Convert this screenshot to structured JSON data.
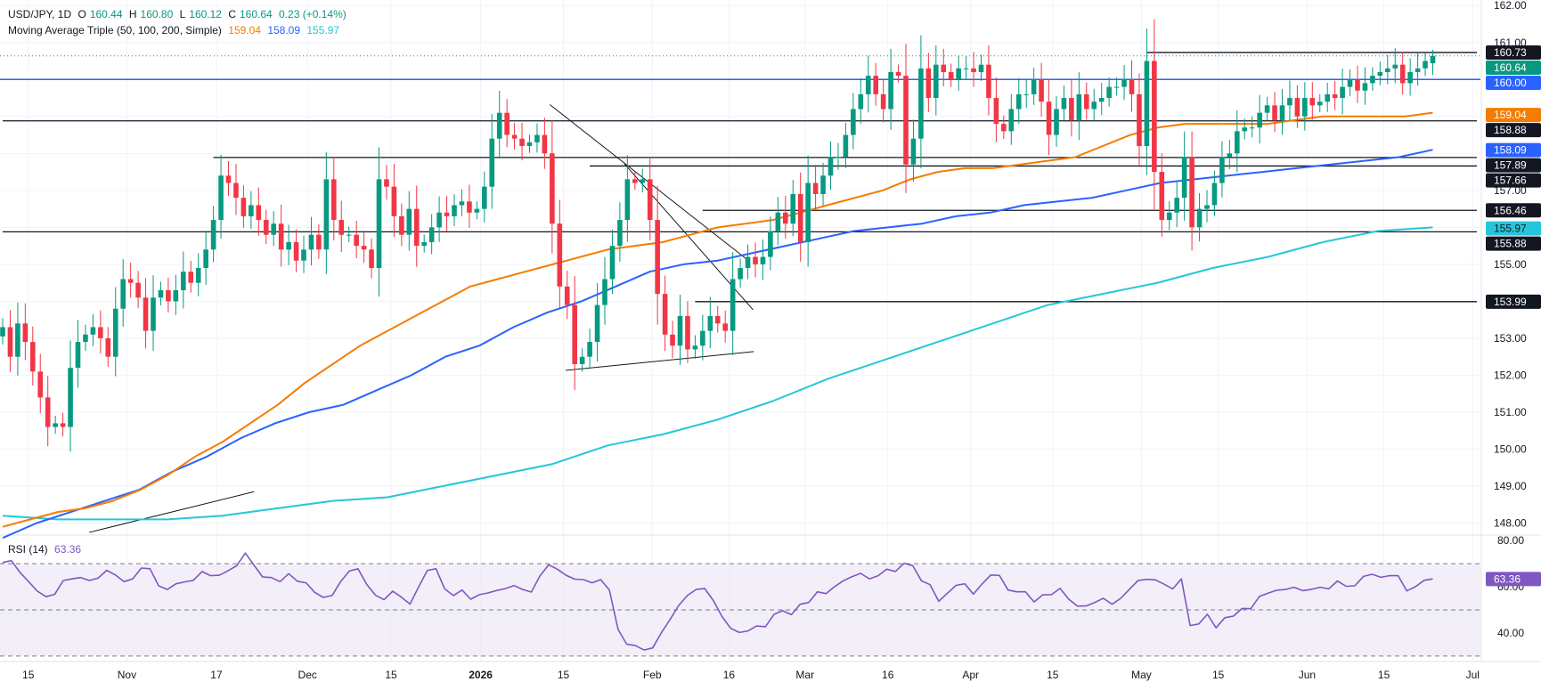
{
  "legend": {
    "symbol": "USD/JPY, 1D",
    "o_label": "O",
    "o_value": "160.44",
    "h_label": "H",
    "h_value": "160.80",
    "l_label": "L",
    "l_value": "160.12",
    "c_label": "C",
    "c_value": "160.64",
    "change": "0.23 (+0.14%)",
    "ma_title": "Moving Average Triple (50, 100, 200, Simple)",
    "ma50_value": "159.04",
    "ma100_value": "158.09",
    "ma200_value": "155.97",
    "rsi_title": "RSI (14)",
    "rsi_value": "63.36"
  },
  "colors": {
    "up": "#089981",
    "down": "#f23645",
    "ma50": "#f57c00",
    "ma100": "#2962ff",
    "ma200": "#26c6da",
    "support": "#131722",
    "level_160": "#2962ff",
    "rsi": "#7e57c2",
    "rsi_band": "#ede7f6",
    "grid": "#f0f3fa",
    "axis_text": "#131722"
  },
  "chart_data": {
    "type": "candlestick",
    "price_axis": {
      "ylim": [
        147.7,
        162.15
      ],
      "ticks": [
        148,
        149,
        150,
        151,
        152,
        153,
        154,
        155,
        156,
        157,
        158,
        159,
        160,
        161,
        162
      ],
      "tick_labels": [
        "148.00",
        "149.00",
        "150.00",
        "151.00",
        "152.00",
        "153.00",
        "154.00",
        "155.00",
        "156.00",
        "157.00",
        "158.00",
        "159.00",
        "160.00",
        "161.00",
        "162.00"
      ]
    },
    "time_axis": {
      "labels": [
        {
          "text": "15",
          "bar": 3.4
        },
        {
          "text": "Nov",
          "bar": 16.5
        },
        {
          "text": "17",
          "bar": 28.4
        },
        {
          "text": "Dec",
          "bar": 40.5
        },
        {
          "text": "15",
          "bar": 51.6
        },
        {
          "text": "2026",
          "bar": 63.5
        },
        {
          "text": "15",
          "bar": 74.5
        },
        {
          "text": "Feb",
          "bar": 86.3
        },
        {
          "text": "16",
          "bar": 96.5
        },
        {
          "text": "Mar",
          "bar": 106.6
        },
        {
          "text": "16",
          "bar": 117.6
        },
        {
          "text": "Apr",
          "bar": 128.6
        },
        {
          "text": "15",
          "bar": 139.5
        },
        {
          "text": "May",
          "bar": 151.3
        },
        {
          "text": "15",
          "bar": 161.5
        },
        {
          "text": "Jun",
          "bar": 173.3
        },
        {
          "text": "15",
          "bar": 183.5
        },
        {
          "text": "Jul",
          "bar": 195.3
        }
      ]
    },
    "close_series": [
      153.3,
      152.5,
      153.4,
      152.9,
      152.1,
      151.4,
      150.6,
      150.7,
      150.6,
      152.2,
      152.9,
      153.1,
      153.3,
      153.0,
      152.5,
      153.8,
      154.6,
      154.5,
      154.1,
      153.2,
      154.1,
      154.3,
      154.0,
      154.3,
      154.8,
      154.5,
      154.9,
      155.4,
      156.2,
      157.4,
      157.2,
      156.8,
      156.3,
      156.6,
      156.2,
      155.8,
      156.1,
      155.4,
      155.6,
      155.1,
      155.4,
      155.8,
      155.4,
      157.3,
      156.2,
      155.8,
      155.8,
      155.5,
      155.4,
      154.9,
      157.3,
      157.1,
      156.3,
      155.8,
      156.5,
      155.5,
      155.6,
      156.0,
      156.4,
      156.3,
      156.6,
      156.7,
      156.4,
      156.5,
      157.1,
      158.4,
      159.1,
      158.5,
      158.4,
      158.2,
      158.3,
      158.5,
      158.0,
      156.1,
      154.4,
      153.9,
      152.3,
      152.5,
      152.9,
      153.9,
      154.6,
      155.5,
      156.2,
      157.3,
      157.2,
      157.3,
      156.2,
      154.2,
      153.1,
      152.8,
      153.6,
      152.7,
      152.8,
      153.2,
      153.6,
      153.4,
      153.2,
      154.6,
      154.9,
      155.2,
      155.0,
      155.2,
      155.9,
      156.4,
      156.1,
      156.9,
      155.6,
      157.2,
      156.9,
      157.4,
      157.9,
      157.9,
      158.5,
      159.2,
      159.6,
      160.1,
      159.6,
      159.2,
      160.2,
      160.1,
      157.7,
      158.4,
      160.3,
      159.5,
      160.4,
      160.2,
      160.0,
      160.3,
      160.3,
      160.2,
      160.4,
      159.5,
      158.8,
      158.6,
      159.2,
      159.6,
      159.6,
      160.0,
      159.4,
      158.5,
      159.2,
      159.5,
      158.9,
      159.6,
      159.2,
      159.4,
      159.5,
      159.8,
      159.8,
      160.0,
      159.6,
      158.2,
      160.5,
      157.5,
      156.2,
      156.4,
      156.8,
      157.9,
      156.0,
      156.5,
      156.6,
      157.2,
      157.9,
      158.0,
      158.6,
      158.7,
      158.7,
      159.1,
      159.3,
      158.9,
      159.3,
      159.5,
      159.0,
      159.5,
      159.3,
      159.4,
      159.6,
      159.5,
      159.8,
      160.0,
      159.7,
      159.9,
      160.1,
      160.2,
      160.3,
      160.4,
      159.9,
      160.2,
      160.3,
      160.5,
      160.6
    ],
    "ma50_series": [
      147.9,
      148.1,
      148.3,
      148.4,
      148.6,
      148.9,
      149.3,
      149.8,
      150.2,
      150.7,
      151.2,
      151.8,
      152.3,
      152.8,
      153.2,
      153.6,
      154.0,
      154.4,
      154.6,
      154.8,
      155.0,
      155.2,
      155.4,
      155.5,
      155.6,
      155.8,
      156.0,
      156.1,
      156.2,
      156.4,
      156.6,
      156.8,
      157.0,
      157.3,
      157.5,
      157.6,
      157.6,
      157.7,
      157.8,
      157.9,
      158.2,
      158.5,
      158.7,
      158.8,
      158.8,
      158.8,
      158.8,
      158.9,
      159.0,
      159.0,
      159.0,
      159.0,
      159.1
    ],
    "ma100_series": [
      147.6,
      148.0,
      148.3,
      148.6,
      148.9,
      149.4,
      149.8,
      150.3,
      150.7,
      151.0,
      151.2,
      151.6,
      152.0,
      152.5,
      152.8,
      153.3,
      153.7,
      154.0,
      154.4,
      154.8,
      155.0,
      155.1,
      155.3,
      155.5,
      155.7,
      155.9,
      156.0,
      156.1,
      156.3,
      156.4,
      156.6,
      156.7,
      156.8,
      157.0,
      157.2,
      157.3,
      157.4,
      157.5,
      157.6,
      157.7,
      157.8,
      157.9,
      158.1
    ],
    "ma200_series": [
      148.2,
      148.1,
      148.1,
      148.1,
      148.2,
      148.4,
      148.6,
      148.7,
      149.0,
      149.3,
      149.6,
      150.1,
      150.4,
      150.8,
      151.3,
      151.9,
      152.4,
      152.9,
      153.4,
      153.9,
      154.2,
      154.5,
      154.9,
      155.2,
      155.6,
      155.9,
      156.0
    ],
    "levels": [
      {
        "value": 160.73,
        "label": "160.73"
      },
      {
        "value": 160.64,
        "label": "160.64"
      },
      {
        "value": 160.0,
        "label": "160.00"
      },
      {
        "value": 159.04,
        "label": "159.04"
      },
      {
        "value": 158.88,
        "label": "158.88"
      },
      {
        "value": 158.09,
        "label": "158.09"
      },
      {
        "value": 157.89,
        "label": "157.89"
      },
      {
        "value": 157.66,
        "label": "157.66"
      },
      {
        "value": 156.46,
        "label": "156.46"
      },
      {
        "value": 155.97,
        "label": "155.97"
      },
      {
        "value": 155.88,
        "label": "155.88"
      },
      {
        "value": 153.99,
        "label": "153.99"
      }
    ],
    "rsi": {
      "ylim": [
        28,
        82
      ],
      "ticks": [
        80,
        60,
        40
      ],
      "tick_labels": [
        "80.00",
        "60.00",
        "40.00"
      ],
      "band": [
        30,
        70
      ],
      "midline": 50,
      "series": [
        70.5,
        71.3,
        66.2,
        62.2,
        58.1,
        55.7,
        56.7,
        62.7,
        63.4,
        64.0,
        62.7,
        63.7,
        67.1,
        65.1,
        62.2,
        63.4,
        68.1,
        67.8,
        60.4,
        58.8,
        61.3,
        62.1,
        62.8,
        66.6,
        64.8,
        65.0,
        66.9,
        69.1,
        74.6,
        69.3,
        64.2,
        64.0,
        62.2,
        65.7,
        62.4,
        61.7,
        57.6,
        55.4,
        56.2,
        62.3,
        66.8,
        67.8,
        61.0,
        56.4,
        54.4,
        58.1,
        55.5,
        52.5,
        60.0,
        67.1,
        67.8,
        59.1,
        56.2,
        58.6,
        54.6,
        56.6,
        57.3,
        58.4,
        59.2,
        60.5,
        58.8,
        57.7,
        64.8,
        69.5,
        67.6,
        65.0,
        63.3,
        63.1,
        61.7,
        63.1,
        58.6,
        41.5,
        35.1,
        34.5,
        32.6,
        33.5,
        40.1,
        45.8,
        51.9,
        56.2,
        58.8,
        59.2,
        54.0,
        47.1,
        42.0,
        40.2,
        40.9,
        43.0,
        42.7,
        48.1,
        49.6,
        47.9,
        52.4,
        53.2,
        57.8,
        57.0,
        60.1,
        62.6,
        64.4,
        65.8,
        63.4,
        64.8,
        67.6,
        66.6,
        70.2,
        69.1,
        62.6,
        60.9,
        53.7,
        57.2,
        60.6,
        61.3,
        56.8,
        61.2,
        65.1,
        64.9,
        58.6,
        57.8,
        57.8,
        53.4,
        56.5,
        56.6,
        59.3,
        54.6,
        51.6,
        51.7,
        53.2,
        55.0,
        52.4,
        55.0,
        58.9,
        62.7,
        63.2,
        63.0,
        61.1,
        59.1,
        63.4,
        43.2,
        43.9,
        48.1,
        42.2,
        46.6,
        47.3,
        50.6,
        50.5,
        55.8,
        57.2,
        58.5,
        58.8,
        59.8,
        58.3,
        58.9,
        59.8,
        59.1,
        62.5,
        60.2,
        60.4,
        64.5,
        65.4,
        64.1,
        64.8,
        64.8,
        58.2,
        60.0,
        62.8,
        63.4
      ]
    }
  }
}
